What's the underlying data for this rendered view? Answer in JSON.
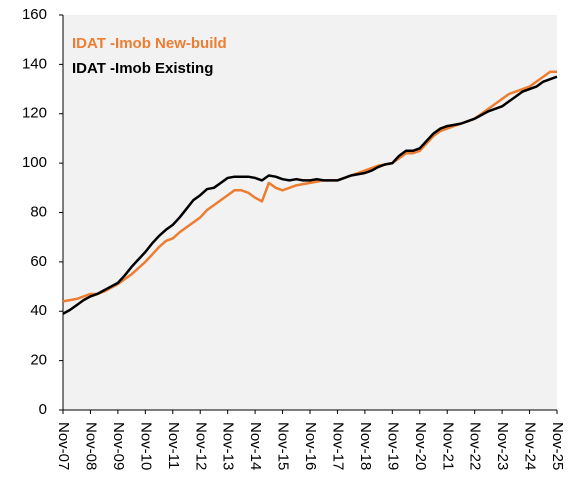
{
  "chart_data": {
    "type": "line",
    "categories": [
      "Nov-07",
      null,
      null,
      null,
      "Nov-08",
      null,
      null,
      null,
      "Nov-09",
      null,
      null,
      null,
      "Nov-10",
      null,
      null,
      null,
      "Nov-11",
      null,
      null,
      null,
      "Nov-12",
      null,
      null,
      null,
      "Nov-13",
      null,
      null,
      null,
      "Nov-14",
      null,
      null,
      null,
      "Nov-15",
      null,
      null,
      null,
      "Nov-16",
      null,
      null,
      null,
      "Nov-17",
      null,
      null,
      null,
      "Nov-18",
      null,
      null,
      null,
      "Nov-19",
      null,
      null,
      null,
      "Nov-20",
      null,
      null,
      null,
      "Nov-21",
      null,
      null,
      null,
      "Nov-22",
      null,
      null,
      null,
      "Nov-23",
      null,
      null,
      null,
      "Nov-24",
      null,
      null,
      null,
      "Nov-25"
    ],
    "series": [
      {
        "name": "IDAT -Imob New-build",
        "color": "#ed7d31",
        "values": [
          44,
          44.5,
          45,
          46,
          47,
          47,
          48,
          49.5,
          51,
          53,
          55,
          57.5,
          60,
          63,
          66,
          68.5,
          69.5,
          72,
          74,
          76,
          78,
          81,
          83,
          85,
          87,
          89,
          89,
          88,
          86,
          84.5,
          92,
          90,
          89,
          90,
          91,
          91.5,
          92,
          92.5,
          93,
          93,
          93,
          94,
          95,
          96,
          97,
          98,
          99,
          99.5,
          100,
          102,
          104,
          104,
          105,
          108,
          111,
          113,
          114,
          115,
          116,
          117,
          118,
          120,
          122,
          124,
          126,
          128,
          129,
          130,
          131,
          133,
          135,
          137,
          137
        ]
      },
      {
        "name": "IDAT -Imob Existing",
        "color": "#000000",
        "values": [
          39,
          40.5,
          42.5,
          44.5,
          46,
          47,
          48.5,
          50,
          51.5,
          54.5,
          58,
          61,
          64,
          67.5,
          70.5,
          73,
          75,
          78,
          81.5,
          85,
          87,
          89.5,
          90,
          92,
          94,
          94.5,
          94.5,
          94.5,
          94,
          93,
          95,
          94.5,
          93.5,
          93,
          93.5,
          93,
          93,
          93.5,
          93,
          93,
          93,
          94,
          95,
          95.5,
          96,
          97,
          98.5,
          99.5,
          100,
          103,
          105,
          105,
          106,
          109,
          112,
          114,
          115,
          115.5,
          116,
          117,
          118,
          119.5,
          121,
          122,
          123,
          125,
          127,
          129,
          130,
          131,
          133,
          134,
          135
        ]
      }
    ],
    "ylim": [
      0,
      160
    ],
    "yticks": [
      0,
      20,
      40,
      60,
      80,
      100,
      120,
      140,
      160
    ],
    "grid": false,
    "legend": "upper left"
  }
}
